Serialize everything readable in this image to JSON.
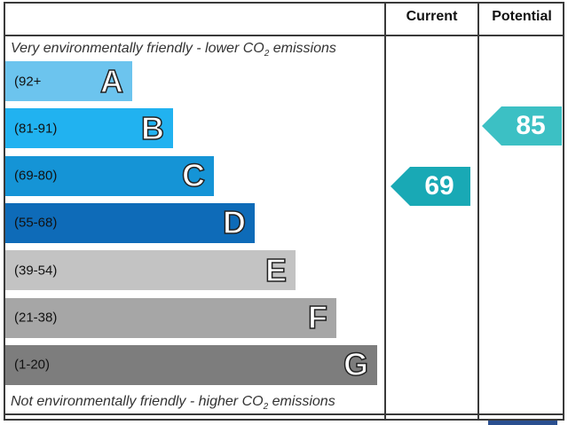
{
  "header": {
    "current": "Current",
    "potential": "Potential"
  },
  "top_caption": {
    "text": "Very environmentally friendly - lower CO",
    "sub": "2",
    "after": " emissions"
  },
  "bottom_caption": {
    "text": "Not environmentally friendly - higher CO",
    "sub": "2",
    "after": " emissions"
  },
  "bands": [
    {
      "range": "(92+",
      "letter": "A",
      "color": "#6cc4ee"
    },
    {
      "range": "(81-91)",
      "letter": "B",
      "color": "#21b2f0"
    },
    {
      "range": "(69-80)",
      "letter": "C",
      "color": "#1594d6"
    },
    {
      "range": "(55-68)",
      "letter": "D",
      "color": "#0e6bb8"
    },
    {
      "range": "(39-54)",
      "letter": "E",
      "color": "#c3c3c3"
    },
    {
      "range": "(21-38)",
      "letter": "F",
      "color": "#a6a6a6"
    },
    {
      "range": "(1-20)",
      "letter": "G",
      "color": "#7d7d7d"
    }
  ],
  "current": {
    "value": "69",
    "color": "#19a9b5"
  },
  "potential": {
    "value": "85",
    "color": "#3cc0c4"
  },
  "chart_data": {
    "type": "bar",
    "categories": [
      "A",
      "B",
      "C",
      "D",
      "E",
      "F",
      "G"
    ],
    "ranges": [
      "(92+",
      "(81-91)",
      "(69-80)",
      "(55-68)",
      "(39-54)",
      "(21-38)",
      "(1-20)"
    ],
    "current": 69,
    "potential": 85
  }
}
